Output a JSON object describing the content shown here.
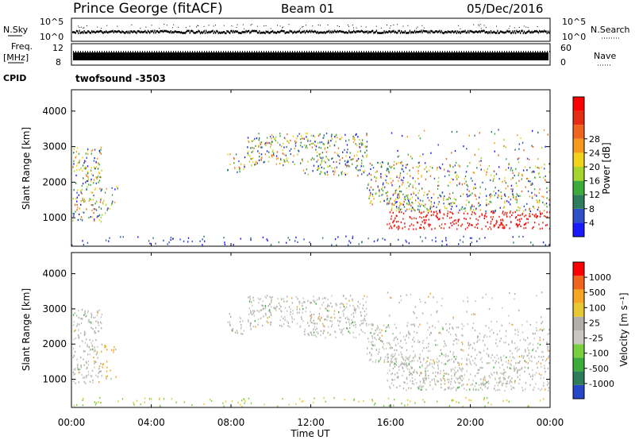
{
  "header": {
    "station": "Prince George (fitACF)",
    "beam": "Beam 01",
    "date": "05/Dec/2016"
  },
  "status_panels": {
    "nsky_label": "N.Sky",
    "freq_label": "Freq.",
    "freq_unit": "[MHz]",
    "cpid_label": "CPID",
    "nsearch_label": "N.Search",
    "nave_label": "Nave",
    "noise_tick_hi": "10^5",
    "noise_tick_lo": "10^0",
    "freq_tick_hi": "12",
    "freq_tick_lo": "8",
    "nave_tick_hi": "60",
    "nave_tick_lo": "0",
    "cpid_value": "twofsound -3503"
  },
  "colors": {
    "power_scale": [
      "#1a1aff",
      "#3050c8",
      "#2e7d5a",
      "#3cab3c",
      "#a6d62e",
      "#f2d21a",
      "#f59a1a",
      "#f0641e",
      "#e62d14",
      "#ff0000"
    ],
    "velocity_scale": [
      "#ff0000",
      "#f0641e",
      "#f5a623",
      "#e6c832",
      "#b0b0a8",
      "#c8c8c0",
      "#78d040",
      "#3cab3c",
      "#2e7d5a",
      "#2846c8"
    ]
  },
  "chart_data": [
    {
      "type": "heatmap",
      "name": "power",
      "ylabel": "Slant Range [km]",
      "yticks": [
        "1000",
        "2000",
        "3000",
        "4000"
      ],
      "ylim": [
        200,
        4600
      ],
      "colorbar_label": "Power [dB]",
      "colorbar_ticks": [
        "4",
        "8",
        "12",
        "16",
        "20",
        "24",
        "28"
      ],
      "colorbar_range": [
        0,
        30
      ]
    },
    {
      "type": "heatmap",
      "name": "velocity",
      "ylabel": "Slant Range [km]",
      "yticks": [
        "1000",
        "2000",
        "3000",
        "4000"
      ],
      "ylim": [
        200,
        4600
      ],
      "colorbar_label": "Velocity [m s⁻¹]",
      "colorbar_ticks": [
        "1000",
        "500",
        "100",
        "25",
        "-25",
        "-100",
        "-500",
        "-1000"
      ]
    }
  ],
  "xaxis": {
    "label": "Time UT",
    "ticks": [
      "00:00",
      "04:00",
      "08:00",
      "12:00",
      "16:00",
      "20:00",
      "00:00"
    ],
    "range_hours": [
      0,
      24
    ]
  }
}
